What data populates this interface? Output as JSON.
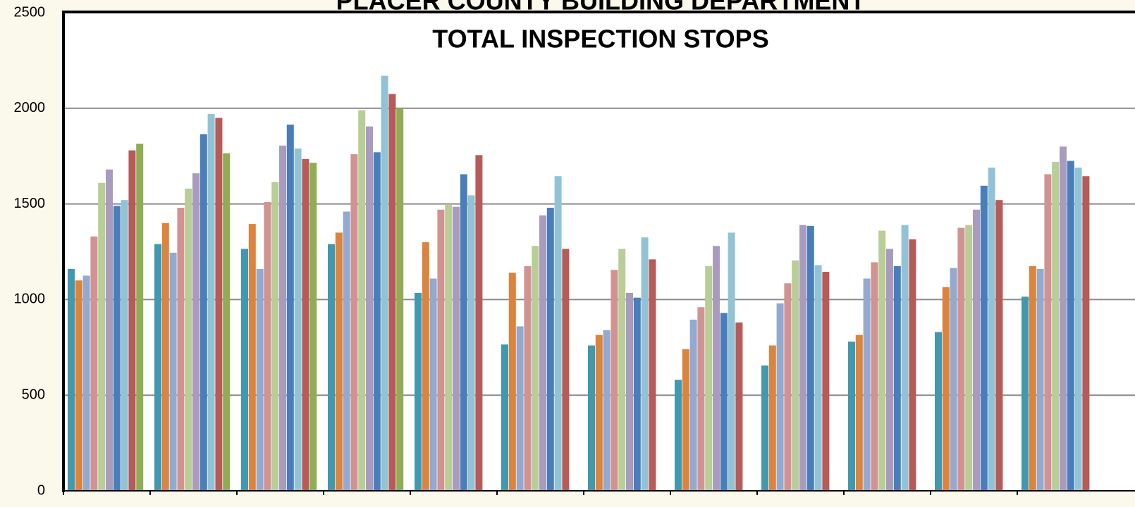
{
  "chart_data": {
    "type": "bar",
    "title": "PLACER COUNTY BUILDING DEPARTMENT",
    "subtitle": "TOTAL INSPECTION STOPS",
    "categories": [
      null,
      null,
      null,
      null,
      null,
      null,
      null,
      null,
      null,
      null,
      null,
      null
    ],
    "series": [
      {
        "color": "#4198af",
        "values": [
          1160,
          1290,
          1265,
          1290,
          1035,
          765,
          760,
          580,
          655,
          780,
          830,
          1015
        ]
      },
      {
        "color": "#db843d",
        "values": [
          1100,
          1400,
          1395,
          1350,
          1300,
          1140,
          815,
          740,
          760,
          815,
          1065,
          1175
        ]
      },
      {
        "color": "#93a9cf",
        "values": [
          1125,
          1245,
          1160,
          1460,
          1110,
          860,
          840,
          895,
          980,
          1110,
          1165,
          1160
        ]
      },
      {
        "color": "#d19392",
        "values": [
          1330,
          1480,
          1510,
          1760,
          1470,
          1175,
          1155,
          960,
          1085,
          1195,
          1375,
          1655
        ]
      },
      {
        "color": "#b9cd96",
        "values": [
          1610,
          1580,
          1615,
          1990,
          1495,
          1280,
          1265,
          1175,
          1205,
          1360,
          1390,
          1720
        ]
      },
      {
        "color": "#a99bbd",
        "values": [
          1680,
          1660,
          1805,
          1905,
          1485,
          1440,
          1035,
          1280,
          1390,
          1265,
          1470,
          1800
        ]
      },
      {
        "color": "#4a7ebb",
        "values": [
          1490,
          1865,
          1915,
          1770,
          1655,
          1480,
          1010,
          930,
          1385,
          1175,
          1595,
          1725
        ]
      },
      {
        "color": "#92c3d5",
        "values": [
          1520,
          1970,
          1790,
          2170,
          1545,
          1645,
          1325,
          1350,
          1180,
          1390,
          1690,
          1690
        ]
      },
      {
        "color": "#b65b58",
        "values": [
          1780,
          1950,
          1735,
          2075,
          1755,
          1265,
          1210,
          880,
          1145,
          1315,
          1520,
          1645
        ]
      },
      {
        "color": "#8fad54",
        "values": [
          1815,
          1765,
          1715,
          2000,
          null,
          null,
          null,
          null,
          null,
          null,
          null,
          null
        ]
      }
    ],
    "ylim": [
      0,
      2500
    ],
    "yticks": [
      0,
      500,
      1000,
      1500,
      2000,
      2500
    ],
    "grid": true
  }
}
